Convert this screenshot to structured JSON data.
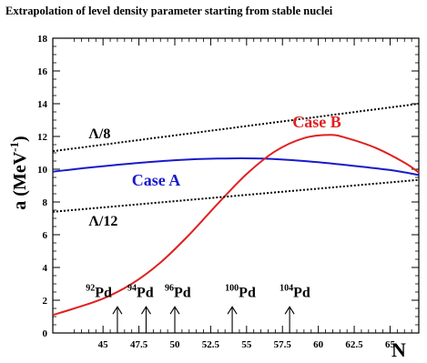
{
  "chart_data": {
    "type": "line",
    "title": "Extrapolation of level density parameter starting from stable nuclei",
    "xlabel": "N",
    "ylabel": "a (MeV",
    "ylabel_sup": "-1",
    "ylabel_close": ")",
    "xlim": [
      41.5,
      67
    ],
    "ylim": [
      0,
      18
    ],
    "xticks": [
      45,
      47.5,
      50,
      52.5,
      55,
      57.5,
      60,
      62.5,
      65
    ],
    "xtick_labels": [
      "45",
      "47.5",
      "50",
      "52.5",
      "55",
      "57.5",
      "60",
      "62.5",
      "65"
    ],
    "yticks": [
      0,
      2,
      4,
      6,
      8,
      10,
      12,
      14,
      16,
      18
    ],
    "ytick_labels": [
      "0",
      "2",
      "4",
      "6",
      "8",
      "10",
      "12",
      "14",
      "16",
      "18"
    ],
    "series": [
      {
        "name": "Case A",
        "color": "#1a1acc",
        "style": "solid",
        "x": [
          41.5,
          44,
          47,
          50,
          53,
          56,
          59,
          62,
          65,
          67
        ],
        "y": [
          9.85,
          10.1,
          10.35,
          10.55,
          10.65,
          10.65,
          10.5,
          10.25,
          9.95,
          9.65
        ]
      },
      {
        "name": "Case B",
        "color": "#e02020",
        "style": "solid",
        "x": [
          41.5,
          43,
          45,
          47,
          49,
          51,
          53,
          55,
          57,
          59,
          60.8,
          62,
          64,
          66,
          67
        ],
        "y": [
          1.1,
          1.5,
          2.1,
          3.0,
          4.3,
          6.0,
          7.9,
          9.7,
          11.1,
          11.9,
          12.1,
          11.9,
          11.3,
          10.4,
          9.8
        ]
      },
      {
        "name": "A/8",
        "color": "#000000",
        "style": "dotted",
        "x": [
          41.5,
          67
        ],
        "y": [
          11.1,
          14.0
        ]
      },
      {
        "name": "A/12",
        "color": "#000000",
        "style": "dotted",
        "x": [
          41.5,
          67
        ],
        "y": [
          7.4,
          9.35
        ]
      }
    ],
    "annotations": {
      "a8_label": "Λ/8",
      "a12_label": "Λ/12",
      "case_a_label": "Case A",
      "case_b_label": "Case B"
    },
    "isotopes": [
      {
        "mass": "92",
        "symbol": "Pd",
        "arrow_n": 46,
        "label_n": 43.8
      },
      {
        "mass": "94",
        "symbol": "Pd",
        "arrow_n": 48,
        "label_n": 46.7
      },
      {
        "mass": "96",
        "symbol": "Pd",
        "arrow_n": 50,
        "label_n": 49.3
      },
      {
        "mass": "100",
        "symbol": "Pd",
        "arrow_n": 54,
        "label_n": 53.5
      },
      {
        "mass": "104",
        "symbol": "Pd",
        "arrow_n": 58,
        "label_n": 57.3
      }
    ]
  }
}
